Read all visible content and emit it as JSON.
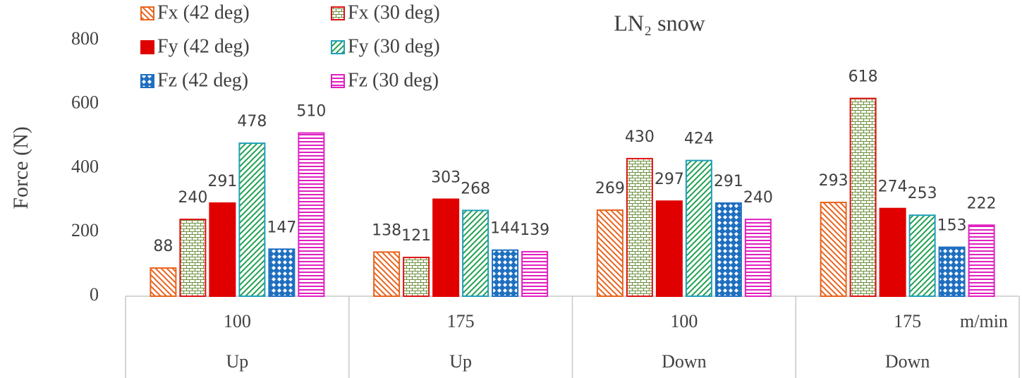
{
  "chart_data": {
    "type": "bar",
    "title": "LN₂ snow",
    "y_label": "Force (N)",
    "annotation": "m/min",
    "categories": [
      "100",
      "175",
      "100",
      "175"
    ],
    "category_groups": [
      "Up",
      "Up",
      "Down",
      "Down"
    ],
    "ylim": [
      0,
      800
    ],
    "yticks": [
      0,
      200,
      400,
      600,
      800
    ],
    "grid": false,
    "legend": "top-left",
    "series": [
      {
        "name": "Fx (42 deg)",
        "color": "#e8641e",
        "edge_color": "#e8641e",
        "pattern": "diagonal-down",
        "values": [
          88,
          138,
          269,
          293
        ]
      },
      {
        "name": "Fx (30 deg)",
        "color": "#6b8f3a",
        "edge_color": "#e01010",
        "pattern": "brick",
        "values": [
          240,
          121,
          430,
          618
        ]
      },
      {
        "name": "Fy (42 deg)",
        "color": "#e00000",
        "edge_color": "#e00000",
        "pattern": "solid",
        "values": [
          291,
          303,
          297,
          274
        ]
      },
      {
        "name": "Fy (30 deg)",
        "color": "#1fa050",
        "edge_color": "#1f9fb8",
        "pattern": "diagonal-up",
        "values": [
          478,
          268,
          424,
          253
        ]
      },
      {
        "name": "Fz (42 deg)",
        "color": "#1f6fc0",
        "edge_color": "#1f6fc0",
        "pattern": "checker",
        "values": [
          147,
          144,
          291,
          153
        ]
      },
      {
        "name": "Fz (30 deg)",
        "color": "#e020c0",
        "edge_color": "#e020c0",
        "pattern": "horizontal",
        "values": [
          510,
          139,
          240,
          222
        ]
      }
    ]
  }
}
